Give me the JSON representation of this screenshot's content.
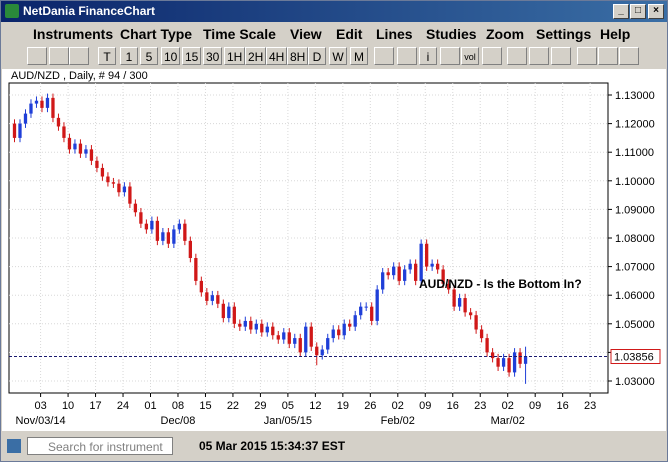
{
  "window": {
    "title": "NetDania FinanceChart"
  },
  "menu": [
    "Instruments",
    "Chart Type",
    "Time Scale",
    "View",
    "Edit",
    "Lines",
    "Studies",
    "Zoom",
    "Settings",
    "Help"
  ],
  "toolbar": [
    "T",
    "1",
    "5",
    "10",
    "15",
    "30",
    "1H",
    "2H",
    "4H",
    "8H",
    "D",
    "W",
    "M",
    "i",
    "vol"
  ],
  "chart_data": {
    "type": "candlestick",
    "title": "AUD/NZD , Daily, # 94 / 300",
    "annotation": "AUD/NZD - Is the Bottom In?",
    "up_color": "#1f3fd8",
    "down_color": "#d01818",
    "grid": true,
    "xlim": [
      -1,
      108
    ],
    "ylim": [
      1.0258,
      1.1342
    ],
    "yticks": [
      {
        "value": 1.03,
        "label": "1.03000"
      },
      {
        "value": 1.04,
        "label": "1.04000"
      },
      {
        "value": 1.05,
        "label": "1.05000"
      },
      {
        "value": 1.06,
        "label": "1.06000"
      },
      {
        "value": 1.07,
        "label": "1.07000"
      },
      {
        "value": 1.08,
        "label": "1.08000"
      },
      {
        "value": 1.09,
        "label": "1.09000"
      },
      {
        "value": 1.1,
        "label": "1.10000"
      },
      {
        "value": 1.11,
        "label": "1.11000"
      },
      {
        "value": 1.12,
        "label": "1.12000"
      },
      {
        "value": 1.13,
        "label": "1.13000"
      }
    ],
    "xticks": [
      {
        "value": 4.75,
        "label": "03"
      },
      {
        "value": 9.75,
        "label": "10"
      },
      {
        "value": 14.75,
        "label": "17"
      },
      {
        "value": 19.75,
        "label": "24"
      },
      {
        "value": 24.75,
        "label": "01"
      },
      {
        "value": 29.75,
        "label": "08"
      },
      {
        "value": 34.75,
        "label": "15"
      },
      {
        "value": 39.75,
        "label": "22"
      },
      {
        "value": 44.75,
        "label": "29"
      },
      {
        "value": 49.75,
        "label": "05"
      },
      {
        "value": 54.75,
        "label": "12"
      },
      {
        "value": 59.75,
        "label": "19"
      },
      {
        "value": 64.75,
        "label": "26"
      },
      {
        "value": 69.75,
        "label": "02"
      },
      {
        "value": 74.75,
        "label": "09"
      },
      {
        "value": 79.75,
        "label": "16"
      },
      {
        "value": 84.75,
        "label": "23"
      },
      {
        "value": 89.75,
        "label": "02"
      },
      {
        "value": 94.75,
        "label": "09"
      },
      {
        "value": 99.75,
        "label": "16"
      },
      {
        "value": 104.75,
        "label": "23"
      }
    ],
    "month_labels": [
      {
        "value": 4.75,
        "label": "Nov/03/14"
      },
      {
        "value": 29.75,
        "label": "Dec/08"
      },
      {
        "value": 49.75,
        "label": "Jan/05/15"
      },
      {
        "value": 69.75,
        "label": "Feb/02"
      },
      {
        "value": 89.75,
        "label": "Mar/02"
      }
    ],
    "price_line": {
      "value": 1.03856,
      "label": "1.03856"
    },
    "ohlc": [
      [
        1.12,
        1.1215,
        1.1135,
        1.115
      ],
      [
        1.115,
        1.1215,
        1.1135,
        1.12
      ],
      [
        1.12,
        1.125,
        1.1185,
        1.1235
      ],
      [
        1.1235,
        1.1285,
        1.122,
        1.127
      ],
      [
        1.127,
        1.1295,
        1.1255,
        1.128
      ],
      [
        1.128,
        1.1295,
        1.124,
        1.1255
      ],
      [
        1.1255,
        1.1305,
        1.124,
        1.129
      ],
      [
        1.129,
        1.1305,
        1.1205,
        1.122
      ],
      [
        1.122,
        1.1235,
        1.1175,
        1.119
      ],
      [
        1.119,
        1.1205,
        1.1135,
        1.115
      ],
      [
        1.115,
        1.1165,
        1.1095,
        1.111
      ],
      [
        1.111,
        1.1145,
        1.1095,
        1.113
      ],
      [
        1.113,
        1.1145,
        1.108,
        1.1095
      ],
      [
        1.1095,
        1.1125,
        1.108,
        1.111
      ],
      [
        1.111,
        1.1125,
        1.1055,
        1.107
      ],
      [
        1.107,
        1.1085,
        1.103,
        1.1045
      ],
      [
        1.1045,
        1.106,
        1.1,
        1.1015
      ],
      [
        1.1015,
        1.103,
        1.098,
        1.0995
      ],
      [
        1.0995,
        1.101,
        1.0975,
        1.099
      ],
      [
        1.099,
        1.1005,
        1.0945,
        1.096
      ],
      [
        1.096,
        1.0995,
        1.0945,
        1.098
      ],
      [
        1.098,
        1.0995,
        1.0905,
        1.092
      ],
      [
        1.092,
        1.0935,
        1.0875,
        1.089
      ],
      [
        1.089,
        1.0905,
        1.0835,
        1.085
      ],
      [
        1.085,
        1.0865,
        1.0815,
        1.083
      ],
      [
        1.083,
        1.0875,
        1.0815,
        1.086
      ],
      [
        1.086,
        1.0875,
        1.0775,
        1.079
      ],
      [
        1.079,
        1.0835,
        1.0775,
        1.082
      ],
      [
        1.082,
        1.0835,
        1.0765,
        1.078
      ],
      [
        1.078,
        1.0845,
        1.0765,
        1.083
      ],
      [
        1.083,
        1.0865,
        1.0815,
        1.085
      ],
      [
        1.085,
        1.0865,
        1.0775,
        1.079
      ],
      [
        1.079,
        1.0805,
        1.0715,
        1.073
      ],
      [
        1.073,
        1.0745,
        1.0635,
        1.065
      ],
      [
        1.065,
        1.0665,
        1.0595,
        1.061
      ],
      [
        1.061,
        1.0625,
        1.0565,
        1.058
      ],
      [
        1.058,
        1.0615,
        1.0565,
        1.06
      ],
      [
        1.06,
        1.0615,
        1.0555,
        1.057
      ],
      [
        1.057,
        1.0585,
        1.0505,
        1.052
      ],
      [
        1.052,
        1.0575,
        1.0505,
        1.056
      ],
      [
        1.056,
        1.0575,
        1.0485,
        1.05
      ],
      [
        1.05,
        1.0515,
        1.0475,
        1.049
      ],
      [
        1.049,
        1.0525,
        1.0475,
        1.051
      ],
      [
        1.051,
        1.0525,
        1.0465,
        1.048
      ],
      [
        1.048,
        1.0515,
        1.0465,
        1.05
      ],
      [
        1.05,
        1.0515,
        1.0455,
        1.047
      ],
      [
        1.047,
        1.0505,
        1.0455,
        1.049
      ],
      [
        1.049,
        1.0505,
        1.0445,
        1.046
      ],
      [
        1.046,
        1.0475,
        1.043,
        1.0445
      ],
      [
        1.0445,
        1.0485,
        1.043,
        1.047
      ],
      [
        1.047,
        1.0485,
        1.0415,
        1.043
      ],
      [
        1.043,
        1.0465,
        1.0415,
        1.045
      ],
      [
        1.045,
        1.0465,
        1.0385,
        1.04
      ],
      [
        1.04,
        1.0505,
        1.0385,
        1.049
      ],
      [
        1.049,
        1.0505,
        1.0405,
        1.042
      ],
      [
        1.042,
        1.0435,
        1.0355,
        1.039
      ],
      [
        1.039,
        1.0425,
        1.0375,
        1.041
      ],
      [
        1.041,
        1.0465,
        1.0395,
        1.045
      ],
      [
        1.045,
        1.0495,
        1.0435,
        1.048
      ],
      [
        1.048,
        1.0495,
        1.0445,
        1.046
      ],
      [
        1.046,
        1.0515,
        1.0445,
        1.05
      ],
      [
        1.05,
        1.0515,
        1.0475,
        1.049
      ],
      [
        1.049,
        1.0545,
        1.0475,
        1.053
      ],
      [
        1.053,
        1.0575,
        1.0515,
        1.056
      ],
      [
        1.056,
        1.0575,
        1.0545,
        1.056
      ],
      [
        1.056,
        1.0575,
        1.0495,
        1.051
      ],
      [
        1.051,
        1.0635,
        1.0495,
        1.062
      ],
      [
        1.062,
        1.0695,
        1.0605,
        1.068
      ],
      [
        1.068,
        1.0695,
        1.0655,
        1.067
      ],
      [
        1.067,
        1.0715,
        1.0655,
        1.07
      ],
      [
        1.07,
        1.0715,
        1.0635,
        1.065
      ],
      [
        1.065,
        1.0705,
        1.0635,
        1.069
      ],
      [
        1.069,
        1.0725,
        1.0675,
        1.071
      ],
      [
        1.071,
        1.0725,
        1.0635,
        1.065
      ],
      [
        1.065,
        1.0795,
        1.0635,
        1.078
      ],
      [
        1.078,
        1.0795,
        1.0685,
        1.07
      ],
      [
        1.07,
        1.0725,
        1.0685,
        1.071
      ],
      [
        1.071,
        1.0725,
        1.0675,
        1.069
      ],
      [
        1.069,
        1.0705,
        1.0625,
        1.064
      ],
      [
        1.064,
        1.0655,
        1.0605,
        1.062
      ],
      [
        1.062,
        1.0635,
        1.0545,
        1.056
      ],
      [
        1.056,
        1.0605,
        1.0545,
        1.059
      ],
      [
        1.059,
        1.0605,
        1.0525,
        1.054
      ],
      [
        1.054,
        1.0555,
        1.0515,
        1.053
      ],
      [
        1.053,
        1.0545,
        1.0465,
        1.048
      ],
      [
        1.048,
        1.0495,
        1.0435,
        1.045
      ],
      [
        1.045,
        1.0465,
        1.0385,
        1.04
      ],
      [
        1.04,
        1.0415,
        1.0365,
        1.038
      ],
      [
        1.038,
        1.0395,
        1.0335,
        1.035
      ],
      [
        1.035,
        1.0395,
        1.0335,
        1.038
      ],
      [
        1.038,
        1.0395,
        1.0315,
        1.033
      ],
      [
        1.033,
        1.0415,
        1.0315,
        1.04
      ],
      [
        1.04,
        1.0415,
        1.0345,
        1.036
      ],
      [
        1.036,
        1.042,
        1.029,
        1.0386
      ]
    ]
  },
  "status": {
    "search_placeholder": "Search for instrument",
    "clock": "05 Mar 2015 15:34:37 EST"
  }
}
